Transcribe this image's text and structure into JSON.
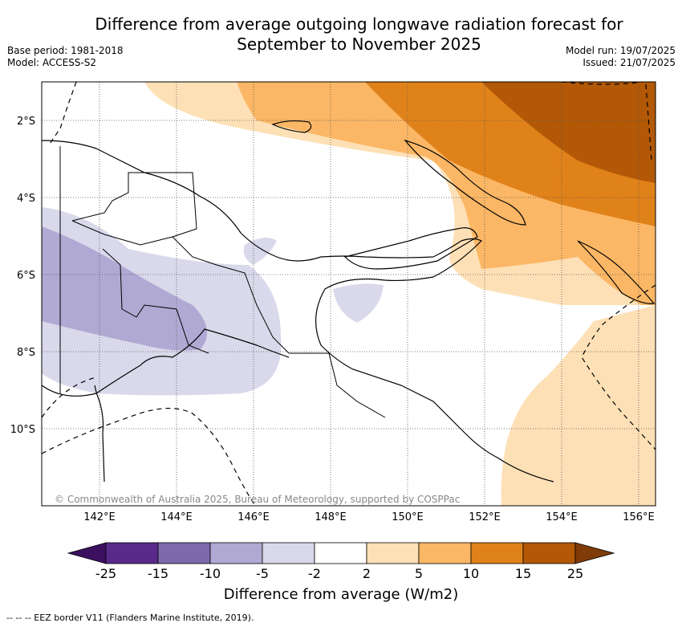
{
  "title_line1": "Difference from average outgoing longwave radiation forecast for",
  "title_line2": "September to November 2025",
  "base_period": "Base period: 1981-2018",
  "model": "Model: ACCESS-S2",
  "model_run": "Model run: 19/07/2025",
  "issued": "Issued: 21/07/2025",
  "copyright": "© Commonwealth of Australia 2025, Bureau of Meteorology, supported by COSPPac",
  "lat_labels": [
    "2°S",
    "4°S",
    "6°S",
    "8°S",
    "10°S"
  ],
  "lon_labels": [
    "142°E",
    "144°E",
    "146°E",
    "148°E",
    "150°E",
    "152°E",
    "154°E",
    "156°E"
  ],
  "colorbar": {
    "label": "Difference from average (W/m2)",
    "ticks": [
      "-25",
      "-15",
      "-10",
      "-5",
      "-2",
      "2",
      "5",
      "10",
      "15",
      "25"
    ],
    "colors": [
      "#3b1060",
      "#5a2a8a",
      "#7e6aab",
      "#b0a9d3",
      "#d9d9eb",
      "#ffffff",
      "#fee0b6",
      "#fbb765",
      "#e0821a",
      "#b25806",
      "#7f3b08"
    ]
  },
  "legend_note": "-- -- -- EEZ border V11 (Flanders Marine Institute, 2019).",
  "colors": {
    "frame": "#000000",
    "grid": "#555555"
  }
}
